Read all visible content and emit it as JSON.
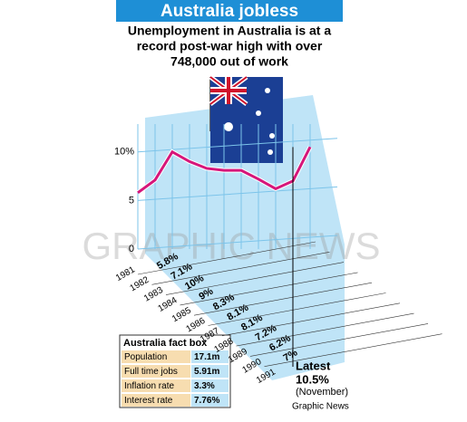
{
  "header": {
    "title": "Australia jobless",
    "subtitle_lines": [
      "Unemployment in Australia is at a",
      "record post-war high with over",
      "748,000 out of work"
    ]
  },
  "chart_data": {
    "type": "line",
    "categories": [
      "1981",
      "1982",
      "1983",
      "1984",
      "1985",
      "1986",
      "1987",
      "1988",
      "1989",
      "1990",
      "1991"
    ],
    "values": [
      5.8,
      7.1,
      10,
      9,
      8.3,
      8.1,
      8.1,
      7.2,
      6.2,
      7,
      10.5
    ],
    "value_labels": [
      "5.8%",
      "7.1%",
      "10%",
      "9%",
      "8.3%",
      "8.1%",
      "8.1%",
      "7.2%",
      "6.2%",
      "7%",
      "10.5%"
    ],
    "color": "#d6167a",
    "ylim": [
      0,
      11
    ],
    "yticks": [
      0,
      5,
      {
        "value": 10,
        "label": "10%"
      }
    ],
    "grid": true,
    "annotation": {
      "title": "Latest",
      "note": "(November)"
    }
  },
  "fact_box": {
    "title": "Australia fact box",
    "rows": [
      [
        "Population",
        "17.1m"
      ],
      [
        "Full time jobs",
        "5.91m"
      ],
      [
        "Inflation rate",
        "3.3%"
      ],
      [
        "Interest rate",
        "7.76%"
      ]
    ]
  },
  "watermark": "GRAPHIC NEWS",
  "source": "Graphic News"
}
